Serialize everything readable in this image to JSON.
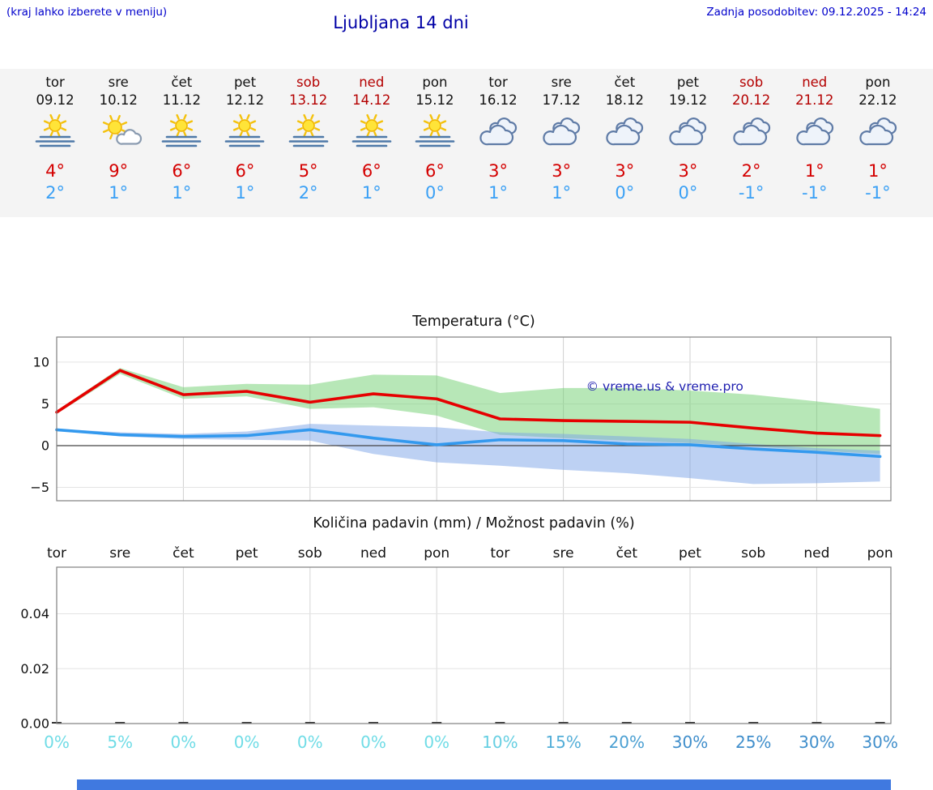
{
  "header": {
    "hint": "(kraj lahko izberete v meniju)",
    "title": "Ljubljana 14 dni",
    "updated": "Zadnja posodobitev: 09.12.2025 - 14:24"
  },
  "colors": {
    "title_blue": "#0000a6",
    "link_blue": "#0000cc",
    "weekend_red": "#b40000",
    "temp_high_red": "#d40000",
    "temp_low_blue": "#3aa0f5",
    "strip_background": "#f4f4f4",
    "bottom_bar_blue": "#4079e0",
    "watermark_blue": "#2020b0"
  },
  "days": [
    {
      "name": "tor",
      "date": "09.12",
      "weekend": false,
      "icon": "sun-fog",
      "high": "4°",
      "low": "2°"
    },
    {
      "name": "sre",
      "date": "10.12",
      "weekend": false,
      "icon": "partly-sunny",
      "high": "9°",
      "low": "1°"
    },
    {
      "name": "čet",
      "date": "11.12",
      "weekend": false,
      "icon": "sun-fog",
      "high": "6°",
      "low": "1°"
    },
    {
      "name": "pet",
      "date": "12.12",
      "weekend": false,
      "icon": "sun-fog",
      "high": "6°",
      "low": "1°"
    },
    {
      "name": "sob",
      "date": "13.12",
      "weekend": true,
      "icon": "sun-fog",
      "high": "5°",
      "low": "2°"
    },
    {
      "name": "ned",
      "date": "14.12",
      "weekend": true,
      "icon": "sun-fog",
      "high": "6°",
      "low": "1°"
    },
    {
      "name": "pon",
      "date": "15.12",
      "weekend": false,
      "icon": "sun-fog",
      "high": "6°",
      "low": "0°"
    },
    {
      "name": "tor",
      "date": "16.12",
      "weekend": false,
      "icon": "cloudy",
      "high": "3°",
      "low": "1°"
    },
    {
      "name": "sre",
      "date": "17.12",
      "weekend": false,
      "icon": "cloudy",
      "high": "3°",
      "low": "1°"
    },
    {
      "name": "čet",
      "date": "18.12",
      "weekend": false,
      "icon": "cloudy",
      "high": "3°",
      "low": "0°"
    },
    {
      "name": "pet",
      "date": "19.12",
      "weekend": false,
      "icon": "cloudy",
      "high": "3°",
      "low": "0°"
    },
    {
      "name": "sob",
      "date": "20.12",
      "weekend": true,
      "icon": "cloudy",
      "high": "2°",
      "low": "-1°"
    },
    {
      "name": "ned",
      "date": "21.12",
      "weekend": true,
      "icon": "cloudy",
      "high": "1°",
      "low": "-1°"
    },
    {
      "name": "pon",
      "date": "22.12",
      "weekend": false,
      "icon": "cloudy",
      "high": "1°",
      "low": "-1°"
    }
  ],
  "chart_data": [
    {
      "type": "line",
      "title": "Temperatura (°C)",
      "categories": [
        "tor",
        "sre",
        "čet",
        "pet",
        "sob",
        "ned",
        "pon",
        "tor",
        "sre",
        "čet",
        "pet",
        "sob",
        "ned",
        "pon"
      ],
      "ylim": [
        -6.6,
        13.0
      ],
      "yticks": [
        -5,
        0,
        5,
        10
      ],
      "grid": true,
      "watermark": "© vreme.us & vreme.pro",
      "series": [
        {
          "name": "max-temperature",
          "color": "#e60000",
          "values": [
            4.0,
            9.0,
            6.1,
            6.5,
            5.2,
            6.2,
            5.6,
            3.2,
            3.0,
            2.9,
            2.8,
            2.1,
            1.5,
            1.2
          ],
          "band": {
            "name": "max-range",
            "color": "#6fd06f",
            "opacity": 0.5,
            "upper": [
              4.2,
              9.3,
              7.0,
              7.4,
              7.3,
              8.5,
              8.4,
              6.3,
              6.9,
              6.9,
              6.6,
              6.1,
              5.3,
              4.4
            ],
            "lower": [
              3.8,
              8.6,
              5.6,
              5.9,
              4.4,
              4.6,
              3.6,
              1.3,
              0.9,
              0.6,
              0.3,
              -0.1,
              -0.6,
              -1.0
            ]
          }
        },
        {
          "name": "min-temperature",
          "color": "#3399ee",
          "values": [
            1.9,
            1.3,
            1.1,
            1.2,
            1.9,
            0.9,
            0.1,
            0.7,
            0.6,
            0.2,
            0.1,
            -0.4,
            -0.8,
            -1.3
          ],
          "band": {
            "name": "min-range",
            "color": "#7ba3e8",
            "opacity": 0.5,
            "upper": [
              2.0,
              1.6,
              1.4,
              1.7,
              2.6,
              2.4,
              2.2,
              1.6,
              1.4,
              1.1,
              0.8,
              0.2,
              -0.3,
              -0.6
            ],
            "lower": [
              1.8,
              1.1,
              0.8,
              0.7,
              0.6,
              -1.0,
              -2.0,
              -2.4,
              -2.9,
              -3.3,
              -3.9,
              -4.6,
              -4.5,
              -4.3
            ]
          }
        }
      ]
    },
    {
      "type": "bar",
      "title": "Količina padavin (mm) / Možnost padavin (%)",
      "categories": [
        "tor",
        "sre",
        "čet",
        "pet",
        "sob",
        "ned",
        "pon",
        "tor",
        "sre",
        "čet",
        "pet",
        "sob",
        "ned",
        "pon"
      ],
      "values": [
        0,
        0,
        0,
        0,
        0,
        0,
        0,
        0,
        0,
        0,
        0,
        0,
        0,
        0
      ],
      "ylim": [
        0,
        0.057
      ],
      "yticks": [
        "0.00",
        "0.02",
        "0.04"
      ],
      "grid": true,
      "percents": [
        {
          "label": "0%",
          "color": "#6fdce6"
        },
        {
          "label": "5%",
          "color": "#6fdce6"
        },
        {
          "label": "0%",
          "color": "#6fdce6"
        },
        {
          "label": "0%",
          "color": "#6fdce6"
        },
        {
          "label": "0%",
          "color": "#6fdce6"
        },
        {
          "label": "0%",
          "color": "#6fdce6"
        },
        {
          "label": "0%",
          "color": "#6fdce6"
        },
        {
          "label": "10%",
          "color": "#66cfe2"
        },
        {
          "label": "15%",
          "color": "#53aed8"
        },
        {
          "label": "20%",
          "color": "#4a9fd2"
        },
        {
          "label": "30%",
          "color": "#3f8ecb"
        },
        {
          "label": "25%",
          "color": "#3f8ecb"
        },
        {
          "label": "30%",
          "color": "#3f8ecb"
        },
        {
          "label": "30%",
          "color": "#3f8ecb"
        }
      ]
    }
  ]
}
